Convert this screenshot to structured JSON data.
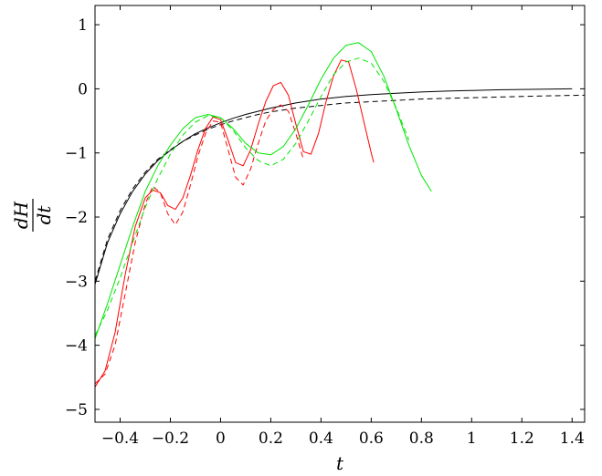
{
  "chart_data": {
    "type": "line",
    "title": "",
    "xlabel": "t",
    "ylabel": {
      "numerator": "dH",
      "denominator": "dt"
    },
    "xlim": [
      -0.5,
      1.45
    ],
    "ylim": [
      -5.2,
      1.3
    ],
    "xticks": [
      -0.4,
      -0.2,
      0,
      0.2,
      0.4,
      0.6,
      0.8,
      1,
      1.2,
      1.4
    ],
    "xtick_labels": [
      "−0.4",
      "−0.2",
      "0",
      "0.2",
      "0.4",
      "0.6",
      "0.8",
      "1",
      "1.2",
      "1.4"
    ],
    "yticks": [
      1,
      0,
      -1,
      -2,
      -3,
      -4,
      -5
    ],
    "ytick_labels": [
      "1",
      "0",
      "−1",
      "−2",
      "−3",
      "−4",
      "−5"
    ],
    "grid": false,
    "legend": "none",
    "series": [
      {
        "color": "#000000",
        "style": "solid",
        "x": [
          -0.5,
          -0.45,
          -0.4,
          -0.35,
          -0.3,
          -0.25,
          -0.2,
          -0.15,
          -0.1,
          -0.05,
          0,
          0.05,
          0.1,
          0.15,
          0.2,
          0.25,
          0.3,
          0.35,
          0.4,
          0.45,
          0.5,
          0.6,
          0.7,
          0.8,
          0.9,
          1.0,
          1.1,
          1.2,
          1.3,
          1.4
        ],
        "y": [
          -3.05,
          -2.4,
          -1.95,
          -1.6,
          -1.33,
          -1.12,
          -0.96,
          -0.82,
          -0.7,
          -0.61,
          -0.53,
          -0.46,
          -0.4,
          -0.35,
          -0.3,
          -0.26,
          -0.22,
          -0.19,
          -0.16,
          -0.14,
          -0.12,
          -0.09,
          -0.07,
          -0.05,
          -0.035,
          -0.025,
          -0.015,
          -0.01,
          -0.005,
          -0.0
        ]
      },
      {
        "color": "#000000",
        "style": "dashed",
        "x": [
          -0.5,
          -0.45,
          -0.4,
          -0.35,
          -0.3,
          -0.25,
          -0.2,
          -0.15,
          -0.1,
          -0.05,
          0,
          0.05,
          0.1,
          0.15,
          0.2,
          0.25,
          0.3,
          0.35,
          0.4,
          0.45,
          0.5,
          0.6,
          0.7,
          0.8,
          0.9,
          1.0,
          1.1,
          1.2,
          1.3,
          1.45
        ],
        "y": [
          -3.0,
          -2.35,
          -1.9,
          -1.56,
          -1.3,
          -1.1,
          -0.95,
          -0.82,
          -0.72,
          -0.63,
          -0.56,
          -0.5,
          -0.45,
          -0.4,
          -0.36,
          -0.33,
          -0.3,
          -0.28,
          -0.26,
          -0.24,
          -0.22,
          -0.2,
          -0.18,
          -0.16,
          -0.15,
          -0.14,
          -0.13,
          -0.12,
          -0.11,
          -0.1
        ]
      },
      {
        "color": "#ff0000",
        "style": "solid",
        "x": [
          -0.5,
          -0.46,
          -0.42,
          -0.38,
          -0.34,
          -0.3,
          -0.27,
          -0.24,
          -0.21,
          -0.18,
          -0.15,
          -0.12,
          -0.09,
          -0.06,
          -0.03,
          0,
          0.03,
          0.06,
          0.09,
          0.12,
          0.15,
          0.18,
          0.21,
          0.24,
          0.27,
          0.3,
          0.33,
          0.36,
          0.39,
          0.42,
          0.45,
          0.48,
          0.51,
          0.54,
          0.57,
          0.6,
          0.61
        ],
        "y": [
          -4.65,
          -4.4,
          -3.8,
          -2.9,
          -2.15,
          -1.7,
          -1.58,
          -1.62,
          -1.82,
          -1.88,
          -1.7,
          -1.35,
          -0.95,
          -0.62,
          -0.44,
          -0.48,
          -0.8,
          -1.15,
          -1.2,
          -0.95,
          -0.55,
          -0.2,
          0.05,
          0.1,
          -0.1,
          -0.55,
          -0.98,
          -1.02,
          -0.7,
          -0.2,
          0.2,
          0.45,
          0.42,
          0.0,
          -0.5,
          -1.0,
          -1.15
        ]
      },
      {
        "color": "#ff0000",
        "style": "dashed",
        "x": [
          -0.5,
          -0.46,
          -0.42,
          -0.38,
          -0.34,
          -0.3,
          -0.27,
          -0.24,
          -0.21,
          -0.18,
          -0.15,
          -0.12,
          -0.09,
          -0.06,
          -0.03,
          0,
          0.03,
          0.06,
          0.09,
          0.12,
          0.15,
          0.18,
          0.21,
          0.24,
          0.27,
          0.3,
          0.33
        ],
        "y": [
          -4.6,
          -4.45,
          -4.0,
          -3.2,
          -2.4,
          -1.8,
          -1.52,
          -1.62,
          -1.95,
          -2.12,
          -1.92,
          -1.5,
          -1.05,
          -0.7,
          -0.5,
          -0.52,
          -0.95,
          -1.38,
          -1.5,
          -1.25,
          -0.85,
          -0.5,
          -0.32,
          -0.25,
          -0.35,
          -0.7,
          -1.1
        ]
      },
      {
        "color": "#00e600",
        "style": "solid",
        "x": [
          -0.5,
          -0.45,
          -0.4,
          -0.35,
          -0.3,
          -0.25,
          -0.2,
          -0.15,
          -0.1,
          -0.05,
          0,
          0.05,
          0.1,
          0.15,
          0.2,
          0.25,
          0.3,
          0.35,
          0.4,
          0.45,
          0.5,
          0.55,
          0.6,
          0.65,
          0.7,
          0.75,
          0.8,
          0.84
        ],
        "y": [
          -3.9,
          -3.35,
          -2.75,
          -2.15,
          -1.6,
          -1.2,
          -0.88,
          -0.62,
          -0.45,
          -0.4,
          -0.45,
          -0.62,
          -0.85,
          -1.0,
          -1.03,
          -0.9,
          -0.62,
          -0.25,
          0.15,
          0.48,
          0.68,
          0.72,
          0.58,
          0.2,
          -0.32,
          -0.88,
          -1.35,
          -1.6
        ]
      },
      {
        "color": "#00e600",
        "style": "dashed",
        "x": [
          -0.5,
          -0.45,
          -0.4,
          -0.35,
          -0.3,
          -0.25,
          -0.2,
          -0.15,
          -0.1,
          -0.05,
          0,
          0.05,
          0.1,
          0.15,
          0.2,
          0.25,
          0.3,
          0.35,
          0.4,
          0.45,
          0.5,
          0.55,
          0.6,
          0.65,
          0.7,
          0.75
        ],
        "y": [
          -3.85,
          -3.45,
          -2.95,
          -2.4,
          -1.85,
          -1.4,
          -1.02,
          -0.72,
          -0.52,
          -0.42,
          -0.45,
          -0.65,
          -0.92,
          -1.12,
          -1.2,
          -1.1,
          -0.85,
          -0.5,
          -0.12,
          0.22,
          0.42,
          0.48,
          0.4,
          0.12,
          -0.3,
          -0.8
        ]
      }
    ]
  }
}
